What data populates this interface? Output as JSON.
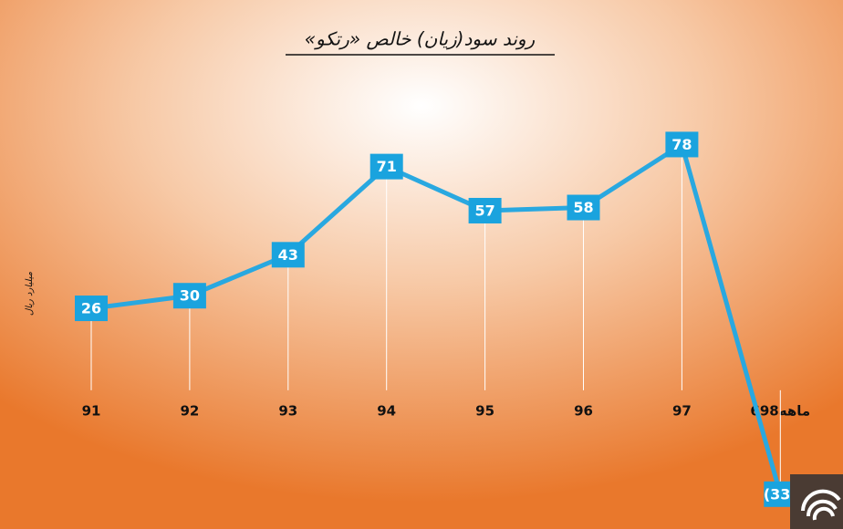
{
  "chart_data": {
    "type": "line",
    "title": "روند سود(زیان) خالص «رتکو»",
    "y_label": "میلیارد ریال",
    "categories": [
      "91",
      "92",
      "93",
      "94",
      "95",
      "96",
      "97",
      "6ماهه98"
    ],
    "values": [
      26,
      30,
      43,
      71,
      57,
      58,
      78,
      -33
    ],
    "value_labels": [
      "26",
      "30",
      "43",
      "71",
      "57",
      "58",
      "78",
      "(33)"
    ],
    "color": "#29a8e0",
    "ylim": [
      -40,
      90
    ]
  }
}
